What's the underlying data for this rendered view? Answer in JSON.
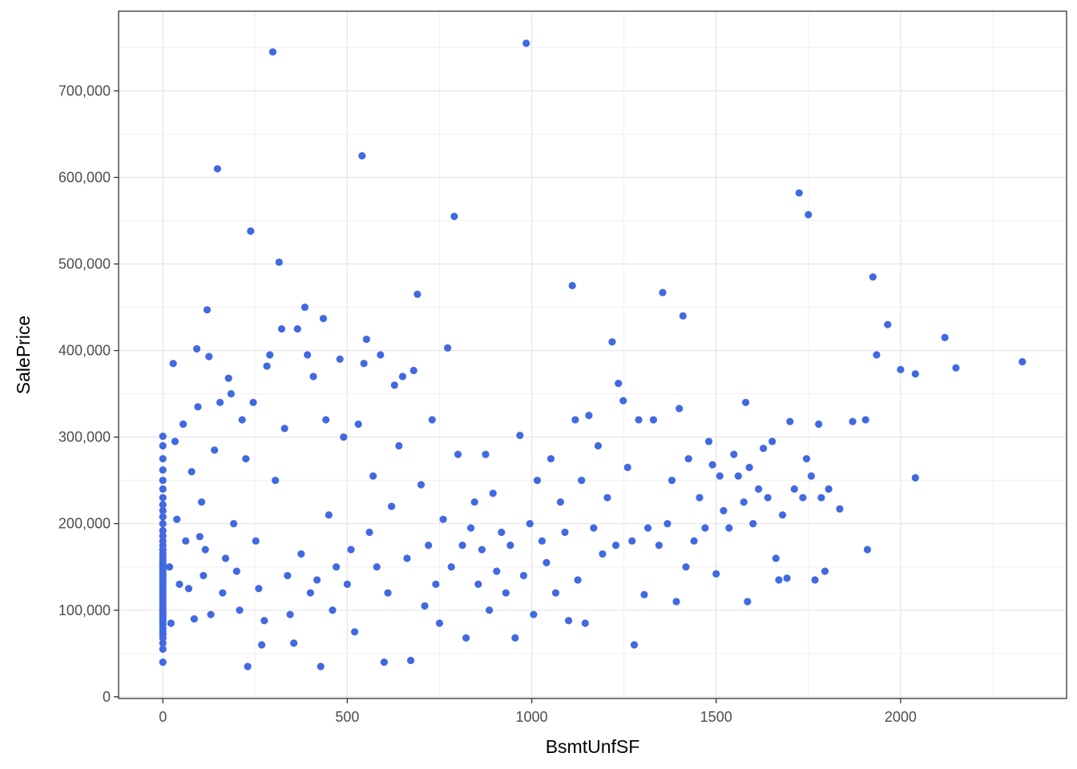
{
  "chart_data": {
    "type": "scatter",
    "title": "",
    "xlabel": "BsmtUnfSF",
    "ylabel": "SalePrice",
    "xlim": [
      -120,
      2450
    ],
    "ylim": [
      -2000,
      792000
    ],
    "x_ticks": [
      0,
      500,
      1000,
      1500,
      2000
    ],
    "x_tick_labels": [
      "0",
      "500",
      "1000",
      "1500",
      "2000"
    ],
    "y_ticks": [
      0,
      100000,
      200000,
      300000,
      400000,
      500000,
      600000,
      700000
    ],
    "y_tick_labels": [
      "0",
      "100,000",
      "200,000",
      "300,000",
      "400,000",
      "500,000",
      "600,000",
      "700,000"
    ],
    "grid": true,
    "legend": "none",
    "point_color": "#4169e1",
    "series": [
      {
        "points": [
          [
            0,
            40000
          ],
          [
            0,
            55000
          ],
          [
            0,
            62000
          ],
          [
            0,
            68000
          ],
          [
            0,
            72000
          ],
          [
            0,
            75000
          ],
          [
            0,
            79000
          ],
          [
            0,
            83000
          ],
          [
            0,
            86000
          ],
          [
            0,
            89000
          ],
          [
            0,
            92000
          ],
          [
            0,
            95000
          ],
          [
            0,
            98000
          ],
          [
            0,
            101000
          ],
          [
            0,
            104000
          ],
          [
            0,
            107000
          ],
          [
            0,
            110000
          ],
          [
            0,
            113000
          ],
          [
            0,
            116000
          ],
          [
            0,
            119000
          ],
          [
            0,
            122000
          ],
          [
            0,
            125000
          ],
          [
            0,
            128000
          ],
          [
            0,
            131000
          ],
          [
            0,
            134000
          ],
          [
            0,
            137000
          ],
          [
            0,
            140000
          ],
          [
            0,
            143000
          ],
          [
            0,
            146000
          ],
          [
            0,
            149000
          ],
          [
            0,
            152000
          ],
          [
            0,
            155000
          ],
          [
            0,
            158000
          ],
          [
            0,
            162000
          ],
          [
            0,
            166000
          ],
          [
            0,
            170000
          ],
          [
            0,
            175000
          ],
          [
            0,
            180000
          ],
          [
            0,
            186000
          ],
          [
            0,
            192000
          ],
          [
            0,
            200000
          ],
          [
            0,
            208000
          ],
          [
            0,
            215000
          ],
          [
            0,
            222000
          ],
          [
            0,
            230000
          ],
          [
            0,
            240000
          ],
          [
            0,
            250000
          ],
          [
            0,
            262000
          ],
          [
            0,
            275000
          ],
          [
            0,
            290000
          ],
          [
            0,
            301000
          ],
          [
            18,
            150000
          ],
          [
            22,
            85000
          ],
          [
            28,
            385000
          ],
          [
            33,
            295000
          ],
          [
            38,
            205000
          ],
          [
            45,
            130000
          ],
          [
            55,
            315000
          ],
          [
            62,
            180000
          ],
          [
            70,
            125000
          ],
          [
            78,
            260000
          ],
          [
            85,
            90000
          ],
          [
            92,
            402000
          ],
          [
            95,
            335000
          ],
          [
            100,
            185000
          ],
          [
            105,
            225000
          ],
          [
            110,
            140000
          ],
          [
            115,
            170000
          ],
          [
            120,
            447000
          ],
          [
            125,
            393000
          ],
          [
            130,
            95000
          ],
          [
            140,
            285000
          ],
          [
            148,
            610000
          ],
          [
            155,
            340000
          ],
          [
            162,
            120000
          ],
          [
            170,
            160000
          ],
          [
            178,
            368000
          ],
          [
            185,
            350000
          ],
          [
            192,
            200000
          ],
          [
            200,
            145000
          ],
          [
            208,
            100000
          ],
          [
            215,
            320000
          ],
          [
            225,
            275000
          ],
          [
            230,
            35000
          ],
          [
            238,
            538000
          ],
          [
            245,
            340000
          ],
          [
            252,
            180000
          ],
          [
            260,
            125000
          ],
          [
            268,
            60000
          ],
          [
            275,
            88000
          ],
          [
            282,
            382000
          ],
          [
            290,
            395000
          ],
          [
            298,
            745000
          ],
          [
            305,
            250000
          ],
          [
            315,
            502000
          ],
          [
            322,
            425000
          ],
          [
            330,
            310000
          ],
          [
            338,
            140000
          ],
          [
            345,
            95000
          ],
          [
            355,
            62000
          ],
          [
            365,
            425000
          ],
          [
            375,
            165000
          ],
          [
            385,
            450000
          ],
          [
            392,
            395000
          ],
          [
            400,
            120000
          ],
          [
            408,
            370000
          ],
          [
            418,
            135000
          ],
          [
            428,
            35000
          ],
          [
            435,
            437000
          ],
          [
            442,
            320000
          ],
          [
            450,
            210000
          ],
          [
            460,
            100000
          ],
          [
            470,
            150000
          ],
          [
            480,
            390000
          ],
          [
            490,
            300000
          ],
          [
            500,
            130000
          ],
          [
            510,
            170000
          ],
          [
            520,
            75000
          ],
          [
            530,
            315000
          ],
          [
            540,
            625000
          ],
          [
            545,
            385000
          ],
          [
            552,
            413000
          ],
          [
            560,
            190000
          ],
          [
            570,
            255000
          ],
          [
            580,
            150000
          ],
          [
            590,
            395000
          ],
          [
            600,
            40000
          ],
          [
            610,
            120000
          ],
          [
            620,
            220000
          ],
          [
            628,
            360000
          ],
          [
            640,
            290000
          ],
          [
            650,
            370000
          ],
          [
            662,
            160000
          ],
          [
            672,
            42000
          ],
          [
            680,
            377000
          ],
          [
            690,
            465000
          ],
          [
            700,
            245000
          ],
          [
            710,
            105000
          ],
          [
            720,
            175000
          ],
          [
            730,
            320000
          ],
          [
            740,
            130000
          ],
          [
            750,
            85000
          ],
          [
            760,
            205000
          ],
          [
            772,
            403000
          ],
          [
            782,
            150000
          ],
          [
            790,
            555000
          ],
          [
            800,
            280000
          ],
          [
            812,
            175000
          ],
          [
            822,
            68000
          ],
          [
            835,
            195000
          ],
          [
            845,
            225000
          ],
          [
            855,
            130000
          ],
          [
            865,
            170000
          ],
          [
            875,
            280000
          ],
          [
            885,
            100000
          ],
          [
            895,
            235000
          ],
          [
            905,
            145000
          ],
          [
            918,
            190000
          ],
          [
            930,
            120000
          ],
          [
            942,
            175000
          ],
          [
            955,
            68000
          ],
          [
            968,
            302000
          ],
          [
            978,
            140000
          ],
          [
            985,
            755000
          ],
          [
            995,
            200000
          ],
          [
            1005,
            95000
          ],
          [
            1015,
            250000
          ],
          [
            1028,
            180000
          ],
          [
            1040,
            155000
          ],
          [
            1052,
            275000
          ],
          [
            1065,
            120000
          ],
          [
            1078,
            225000
          ],
          [
            1090,
            190000
          ],
          [
            1100,
            88000
          ],
          [
            1110,
            475000
          ],
          [
            1118,
            320000
          ],
          [
            1125,
            135000
          ],
          [
            1135,
            250000
          ],
          [
            1145,
            85000
          ],
          [
            1155,
            325000
          ],
          [
            1168,
            195000
          ],
          [
            1180,
            290000
          ],
          [
            1192,
            165000
          ],
          [
            1205,
            230000
          ],
          [
            1218,
            410000
          ],
          [
            1228,
            175000
          ],
          [
            1235,
            362000
          ],
          [
            1248,
            342000
          ],
          [
            1260,
            265000
          ],
          [
            1272,
            180000
          ],
          [
            1278,
            60000
          ],
          [
            1290,
            320000
          ],
          [
            1305,
            118000
          ],
          [
            1315,
            195000
          ],
          [
            1330,
            320000
          ],
          [
            1345,
            175000
          ],
          [
            1355,
            467000
          ],
          [
            1368,
            200000
          ],
          [
            1380,
            250000
          ],
          [
            1392,
            110000
          ],
          [
            1400,
            333000
          ],
          [
            1410,
            440000
          ],
          [
            1418,
            150000
          ],
          [
            1425,
            275000
          ],
          [
            1440,
            180000
          ],
          [
            1455,
            230000
          ],
          [
            1470,
            195000
          ],
          [
            1480,
            295000
          ],
          [
            1490,
            268000
          ],
          [
            1500,
            142000
          ],
          [
            1510,
            255000
          ],
          [
            1520,
            215000
          ],
          [
            1535,
            195000
          ],
          [
            1548,
            280000
          ],
          [
            1560,
            255000
          ],
          [
            1575,
            225000
          ],
          [
            1580,
            340000
          ],
          [
            1585,
            110000
          ],
          [
            1590,
            265000
          ],
          [
            1600,
            200000
          ],
          [
            1615,
            240000
          ],
          [
            1628,
            287000
          ],
          [
            1640,
            230000
          ],
          [
            1652,
            295000
          ],
          [
            1662,
            160000
          ],
          [
            1670,
            135000
          ],
          [
            1680,
            210000
          ],
          [
            1692,
            137000
          ],
          [
            1700,
            318000
          ],
          [
            1712,
            240000
          ],
          [
            1725,
            582000
          ],
          [
            1735,
            230000
          ],
          [
            1745,
            275000
          ],
          [
            1750,
            557000
          ],
          [
            1758,
            255000
          ],
          [
            1768,
            135000
          ],
          [
            1778,
            315000
          ],
          [
            1785,
            230000
          ],
          [
            1795,
            145000
          ],
          [
            1805,
            240000
          ],
          [
            1835,
            217000
          ],
          [
            1870,
            318000
          ],
          [
            1905,
            320000
          ],
          [
            1910,
            170000
          ],
          [
            1925,
            485000
          ],
          [
            1935,
            395000
          ],
          [
            1965,
            430000
          ],
          [
            2000,
            378000
          ],
          [
            2040,
            373000
          ],
          [
            2040,
            253000
          ],
          [
            2120,
            415000
          ],
          [
            2150,
            380000
          ],
          [
            2330,
            387000
          ]
        ]
      }
    ]
  }
}
